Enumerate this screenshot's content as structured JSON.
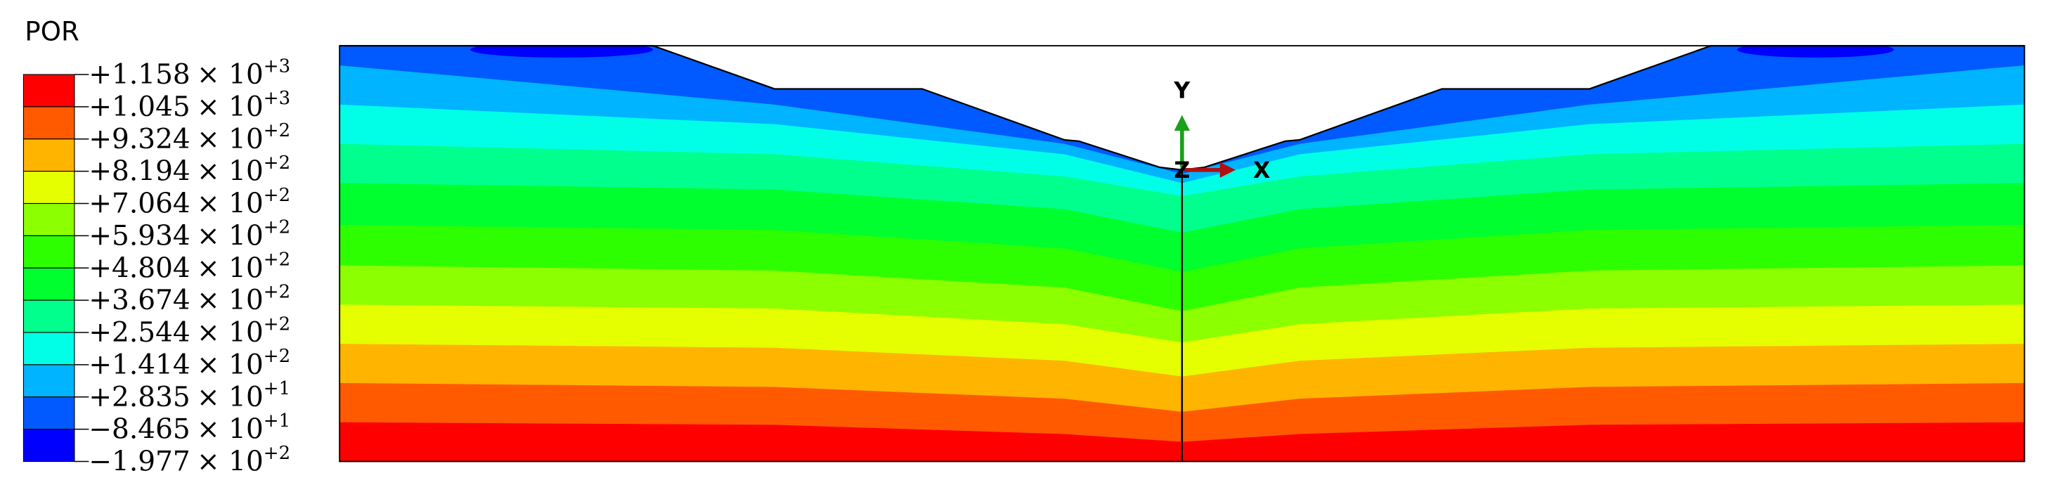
{
  "legend": {
    "title": "POR",
    "times": "× 10",
    "entries": [
      {
        "mantissa": "+1.158",
        "exponent": "+3"
      },
      {
        "mantissa": "+1.045",
        "exponent": "+3"
      },
      {
        "mantissa": "+9.324",
        "exponent": "+2"
      },
      {
        "mantissa": "+8.194",
        "exponent": "+2"
      },
      {
        "mantissa": "+7.064",
        "exponent": "+2"
      },
      {
        "mantissa": "+5.934",
        "exponent": "+2"
      },
      {
        "mantissa": "+4.804",
        "exponent": "+2"
      },
      {
        "mantissa": "+3.674",
        "exponent": "+2"
      },
      {
        "mantissa": "+2.544",
        "exponent": "+2"
      },
      {
        "mantissa": "+1.414",
        "exponent": "+2"
      },
      {
        "mantissa": "+2.835",
        "exponent": "+1"
      },
      {
        "mantissa": "−8.465",
        "exponent": "+1"
      },
      {
        "mantissa": "−1.977",
        "exponent": "+2"
      }
    ],
    "colors": [
      "#ff0000",
      "#ff5a00",
      "#ffb400",
      "#e6ff00",
      "#8cff00",
      "#2eff00",
      "#00ff2e",
      "#00ff8c",
      "#00ffe6",
      "#00b4ff",
      "#005aff",
      "#0000ff"
    ]
  },
  "triad": {
    "x": "X",
    "y": "Y",
    "z": "Z"
  }
}
